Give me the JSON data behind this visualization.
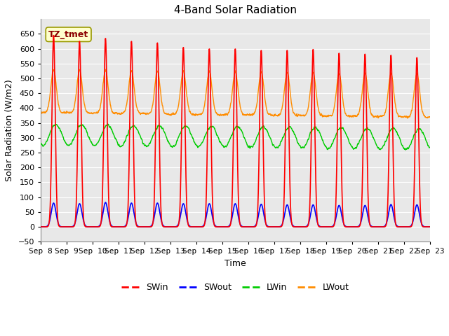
{
  "title": "4-Band Solar Radiation",
  "xlabel": "Time",
  "ylabel": "Solar Radiation (W/m2)",
  "ylim": [
    -50,
    700
  ],
  "yticks": [
    -50,
    0,
    50,
    100,
    150,
    200,
    250,
    300,
    350,
    400,
    450,
    500,
    550,
    600,
    650
  ],
  "start_day": 8,
  "end_day": 23,
  "num_days": 15,
  "SWin_peaks": [
    645,
    625,
    635,
    625,
    620,
    605,
    600,
    600,
    595,
    595,
    598,
    585,
    582,
    578,
    570
  ],
  "SWout_peaks": [
    80,
    78,
    82,
    80,
    80,
    78,
    78,
    78,
    76,
    74,
    74,
    72,
    72,
    75,
    74
  ],
  "LWin_base": 305,
  "LWout_night": 385,
  "LWout_peak_add": 145,
  "colors": {
    "SWin": "#ff0000",
    "SWout": "#0000ff",
    "LWin": "#00cc00",
    "LWout": "#ff8c00"
  },
  "legend_labels": [
    "SWin",
    "SWout",
    "LWin",
    "LWout"
  ],
  "annotation_text": "TZ_tmet",
  "fig_bg_color": "#ffffff",
  "plot_bg_color": "#e8e8e8",
  "grid_color": "#ffffff",
  "title_fontsize": 11,
  "label_fontsize": 9,
  "tick_fontsize": 8
}
